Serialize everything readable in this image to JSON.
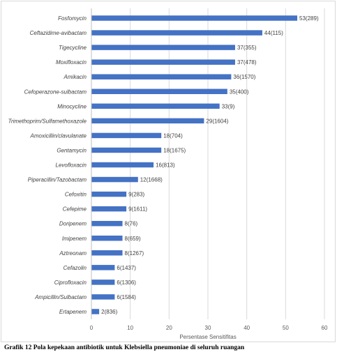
{
  "chart_data": {
    "type": "bar",
    "orientation": "horizontal",
    "categories": [
      "Fosfomycin",
      "Ceftazidime-avibactam",
      "Tigecycline",
      "Moxifloxacin",
      "Amikacin",
      "Cefoperazone-sulbactam",
      "Minocycline",
      "Trimethoprim/Sulfamethoxazole",
      "Amoxicillin/clavulanate",
      "Gentamycin",
      "Levofloxacin",
      "Piperacillin/Tazobactam",
      "Cefoxitin",
      "Cefepime",
      "Doripenem",
      "Imipenem",
      "Aztreonam",
      "Cefazolin",
      "Ciprofloxacin",
      "Ampicillin/Sulbactam",
      "Ertapenem"
    ],
    "values": [
      53,
      44,
      37,
      37,
      36,
      35,
      33,
      29,
      18,
      18,
      16,
      12,
      9,
      9,
      8,
      8,
      8,
      6,
      6,
      6,
      2
    ],
    "data_labels": [
      "53(289)",
      "44(115)",
      "37(355)",
      "37(478)",
      "36(1570)",
      "35(400)",
      "33(9)",
      "29(1604)",
      "18(704)",
      "18(1675)",
      "16(813)",
      "12(1668)",
      "9(283)",
      "9(1611)",
      "8(76)",
      "8(659)",
      "8(1267)",
      "6(1437)",
      "6(1306)",
      "6(1584)",
      "2(836)"
    ],
    "xlabel": "Persentase Sensitifitas",
    "xlim": [
      0,
      60
    ],
    "xticks": [
      0,
      10,
      20,
      30,
      40,
      50,
      60
    ],
    "grid": true,
    "bar_color": "#4472c4"
  },
  "caption": "Grafik 12 Pola kepekaan antibiotik untuk Klebsiella pneumoniae di seluruh ruangan"
}
